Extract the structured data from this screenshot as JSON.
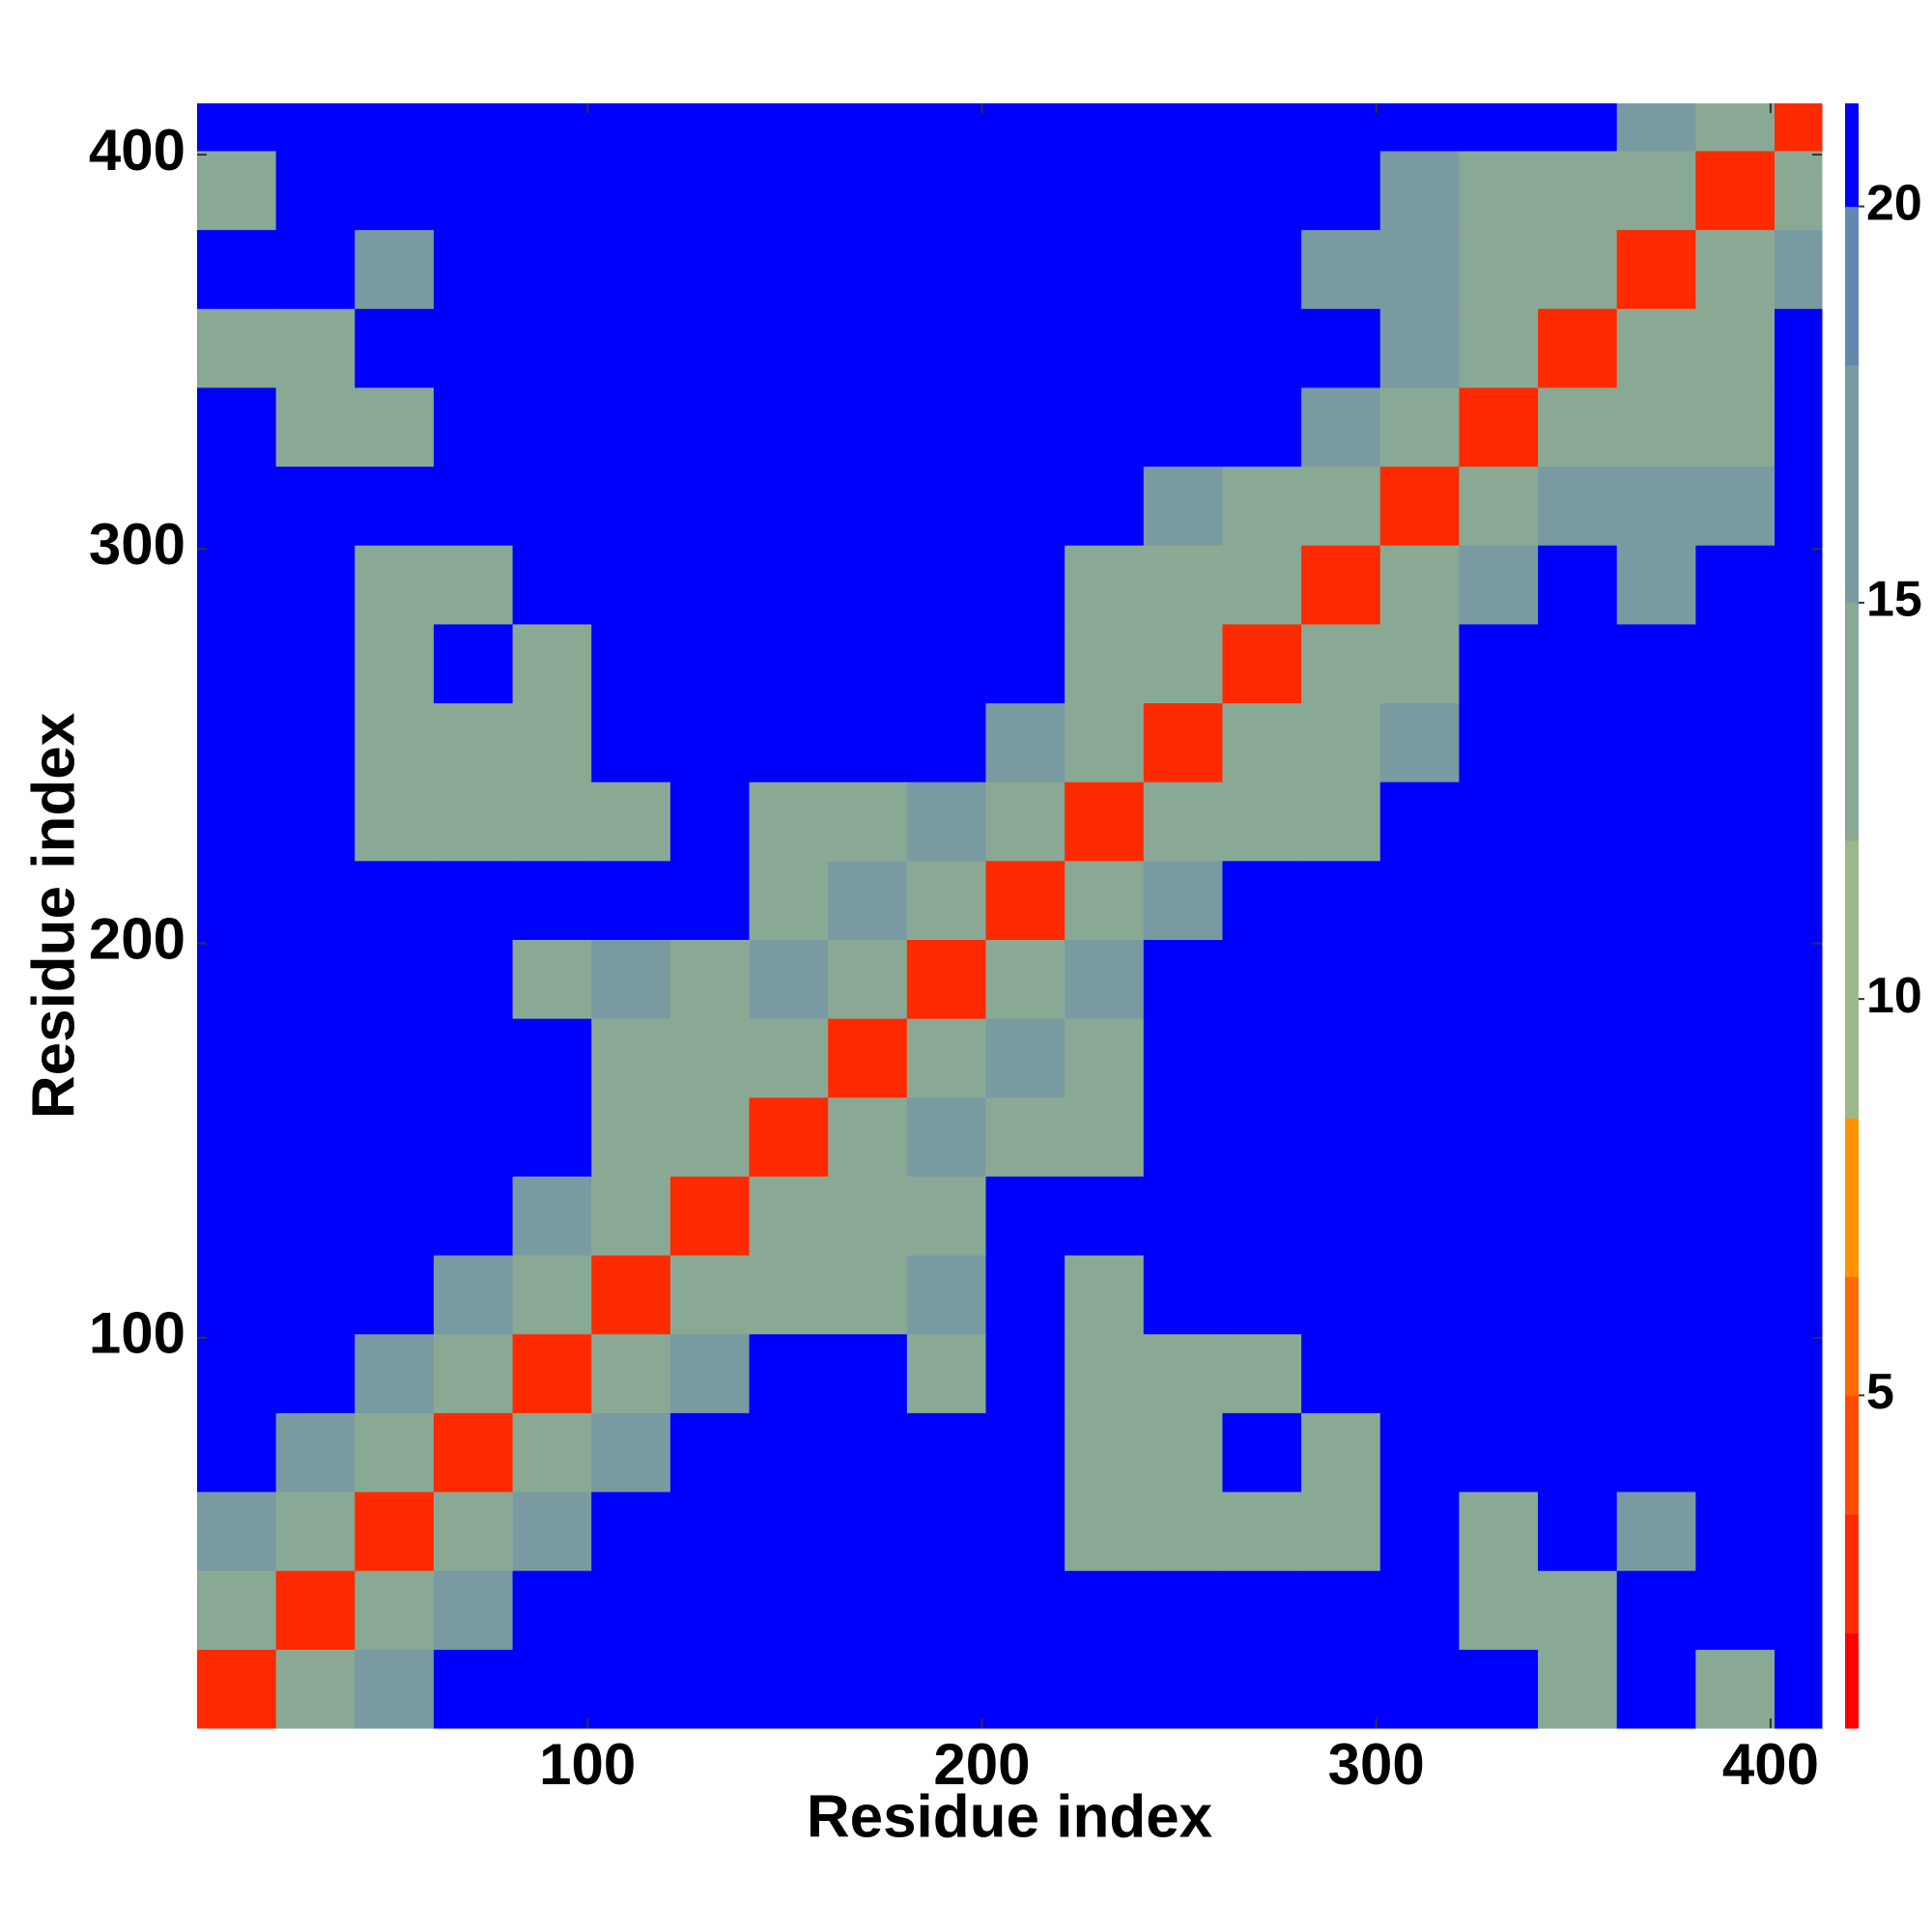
{
  "chart_data": {
    "type": "heatmap",
    "xlabel": "Residue index",
    "ylabel": "Residue index",
    "xlim": [
      1,
      413
    ],
    "ylim": [
      1,
      413
    ],
    "xticks": [
      100,
      200,
      300,
      400
    ],
    "yticks": [
      100,
      200,
      300,
      400
    ],
    "xbins": [
      1,
      21,
      41,
      61,
      81,
      101,
      121,
      141,
      161,
      181,
      201,
      221,
      241,
      261,
      281,
      301,
      321,
      341,
      361,
      381,
      401,
      413
    ],
    "ybins": [
      1,
      21,
      41,
      61,
      81,
      101,
      121,
      141,
      161,
      181,
      201,
      221,
      241,
      261,
      281,
      301,
      321,
      341,
      361,
      381,
      401,
      413
    ],
    "z": [
      [
        3,
        12,
        16,
        21,
        21,
        21,
        21,
        21,
        21,
        21,
        21,
        21,
        21,
        21,
        21,
        21,
        21,
        13,
        21,
        13,
        21
      ],
      [
        12,
        3,
        12,
        16,
        21,
        21,
        21,
        21,
        21,
        21,
        21,
        21,
        21,
        21,
        21,
        21,
        13,
        14,
        21,
        21,
        21
      ],
      [
        16,
        12,
        3,
        12,
        16,
        21,
        21,
        21,
        21,
        21,
        21,
        14,
        13,
        12,
        12,
        21,
        13,
        21,
        17,
        21,
        21
      ],
      [
        21,
        16,
        12,
        3,
        12,
        16,
        21,
        21,
        21,
        21,
        21,
        12,
        13,
        21,
        14,
        21,
        21,
        21,
        21,
        21,
        21
      ],
      [
        21,
        21,
        16,
        12,
        3,
        12,
        16,
        21,
        21,
        14,
        21,
        13,
        13,
        14,
        21,
        21,
        21,
        21,
        21,
        21,
        21
      ],
      [
        21,
        21,
        21,
        16,
        12,
        3,
        12,
        13,
        14,
        15,
        21,
        14,
        21,
        21,
        21,
        21,
        21,
        21,
        21,
        21,
        21
      ],
      [
        21,
        21,
        21,
        21,
        16,
        12,
        3,
        12,
        13,
        13,
        21,
        21,
        21,
        21,
        21,
        21,
        21,
        21,
        21,
        21,
        21
      ],
      [
        21,
        21,
        21,
        21,
        21,
        13,
        12,
        3,
        12,
        16,
        13,
        14,
        21,
        21,
        21,
        21,
        21,
        21,
        21,
        21,
        21
      ],
      [
        21,
        21,
        21,
        21,
        21,
        14,
        13,
        12,
        3,
        12,
        16,
        13,
        21,
        21,
        21,
        21,
        21,
        21,
        21,
        21,
        21
      ],
      [
        21,
        21,
        21,
        21,
        14,
        15,
        13,
        16,
        12,
        3,
        12,
        16,
        21,
        21,
        21,
        21,
        21,
        21,
        21,
        21,
        21
      ],
      [
        21,
        21,
        21,
        21,
        21,
        21,
        21,
        13,
        16,
        12,
        3,
        12,
        16,
        21,
        21,
        21,
        21,
        21,
        21,
        21,
        21
      ],
      [
        21,
        21,
        14,
        12,
        13,
        14,
        21,
        14,
        13,
        16,
        12,
        3,
        12,
        12,
        14,
        21,
        21,
        21,
        21,
        21,
        21
      ],
      [
        21,
        21,
        13,
        13,
        13,
        21,
        21,
        21,
        21,
        21,
        16,
        12,
        3,
        12,
        13,
        15,
        21,
        21,
        21,
        21,
        21
      ],
      [
        21,
        21,
        12,
        21,
        14,
        21,
        21,
        21,
        21,
        21,
        21,
        12,
        12,
        3,
        12,
        14,
        21,
        21,
        21,
        21,
        21
      ],
      [
        21,
        21,
        12,
        14,
        21,
        21,
        21,
        21,
        21,
        21,
        21,
        14,
        13,
        12,
        3,
        12,
        15,
        21,
        16,
        21,
        21
      ],
      [
        21,
        21,
        21,
        21,
        21,
        21,
        21,
        21,
        21,
        21,
        21,
        21,
        15,
        14,
        12,
        3,
        12,
        16,
        16,
        16,
        21
      ],
      [
        21,
        13,
        13,
        21,
        21,
        21,
        21,
        21,
        21,
        21,
        21,
        21,
        21,
        21,
        15,
        12,
        3,
        12,
        13,
        13,
        21
      ],
      [
        13,
        14,
        21,
        21,
        21,
        21,
        21,
        21,
        21,
        21,
        21,
        21,
        21,
        21,
        21,
        16,
        12,
        3,
        12,
        12,
        21
      ],
      [
        21,
        21,
        17,
        21,
        21,
        21,
        21,
        21,
        21,
        21,
        21,
        21,
        21,
        21,
        16,
        16,
        13,
        12,
        3,
        12,
        16
      ],
      [
        13,
        21,
        21,
        21,
        21,
        21,
        21,
        21,
        21,
        21,
        21,
        21,
        21,
        21,
        21,
        16,
        13,
        12,
        12,
        3,
        12
      ],
      [
        21,
        21,
        21,
        21,
        21,
        21,
        21,
        21,
        21,
        21,
        21,
        21,
        21,
        21,
        21,
        21,
        21,
        21,
        16,
        12,
        3
      ]
    ],
    "clim": [
      0.8,
      21.3
    ],
    "cticks": [
      5,
      10,
      15,
      20
    ],
    "color_stops": [
      {
        "value": 0.8,
        "color": "#ff0000"
      },
      {
        "value": 2,
        "color": "#ff2a00"
      },
      {
        "value": 3.5,
        "color": "#ff4b00"
      },
      {
        "value": 5,
        "color": "#ff6a00"
      },
      {
        "value": 6.5,
        "color": "#ff9400"
      },
      {
        "value": 8.5,
        "color": "#9bb88a"
      },
      {
        "value": 12,
        "color": "#8aa994"
      },
      {
        "value": 15,
        "color": "#7a9aa2"
      },
      {
        "value": 18,
        "color": "#6288b0"
      },
      {
        "value": 20,
        "color": "#0000ff"
      }
    ]
  }
}
